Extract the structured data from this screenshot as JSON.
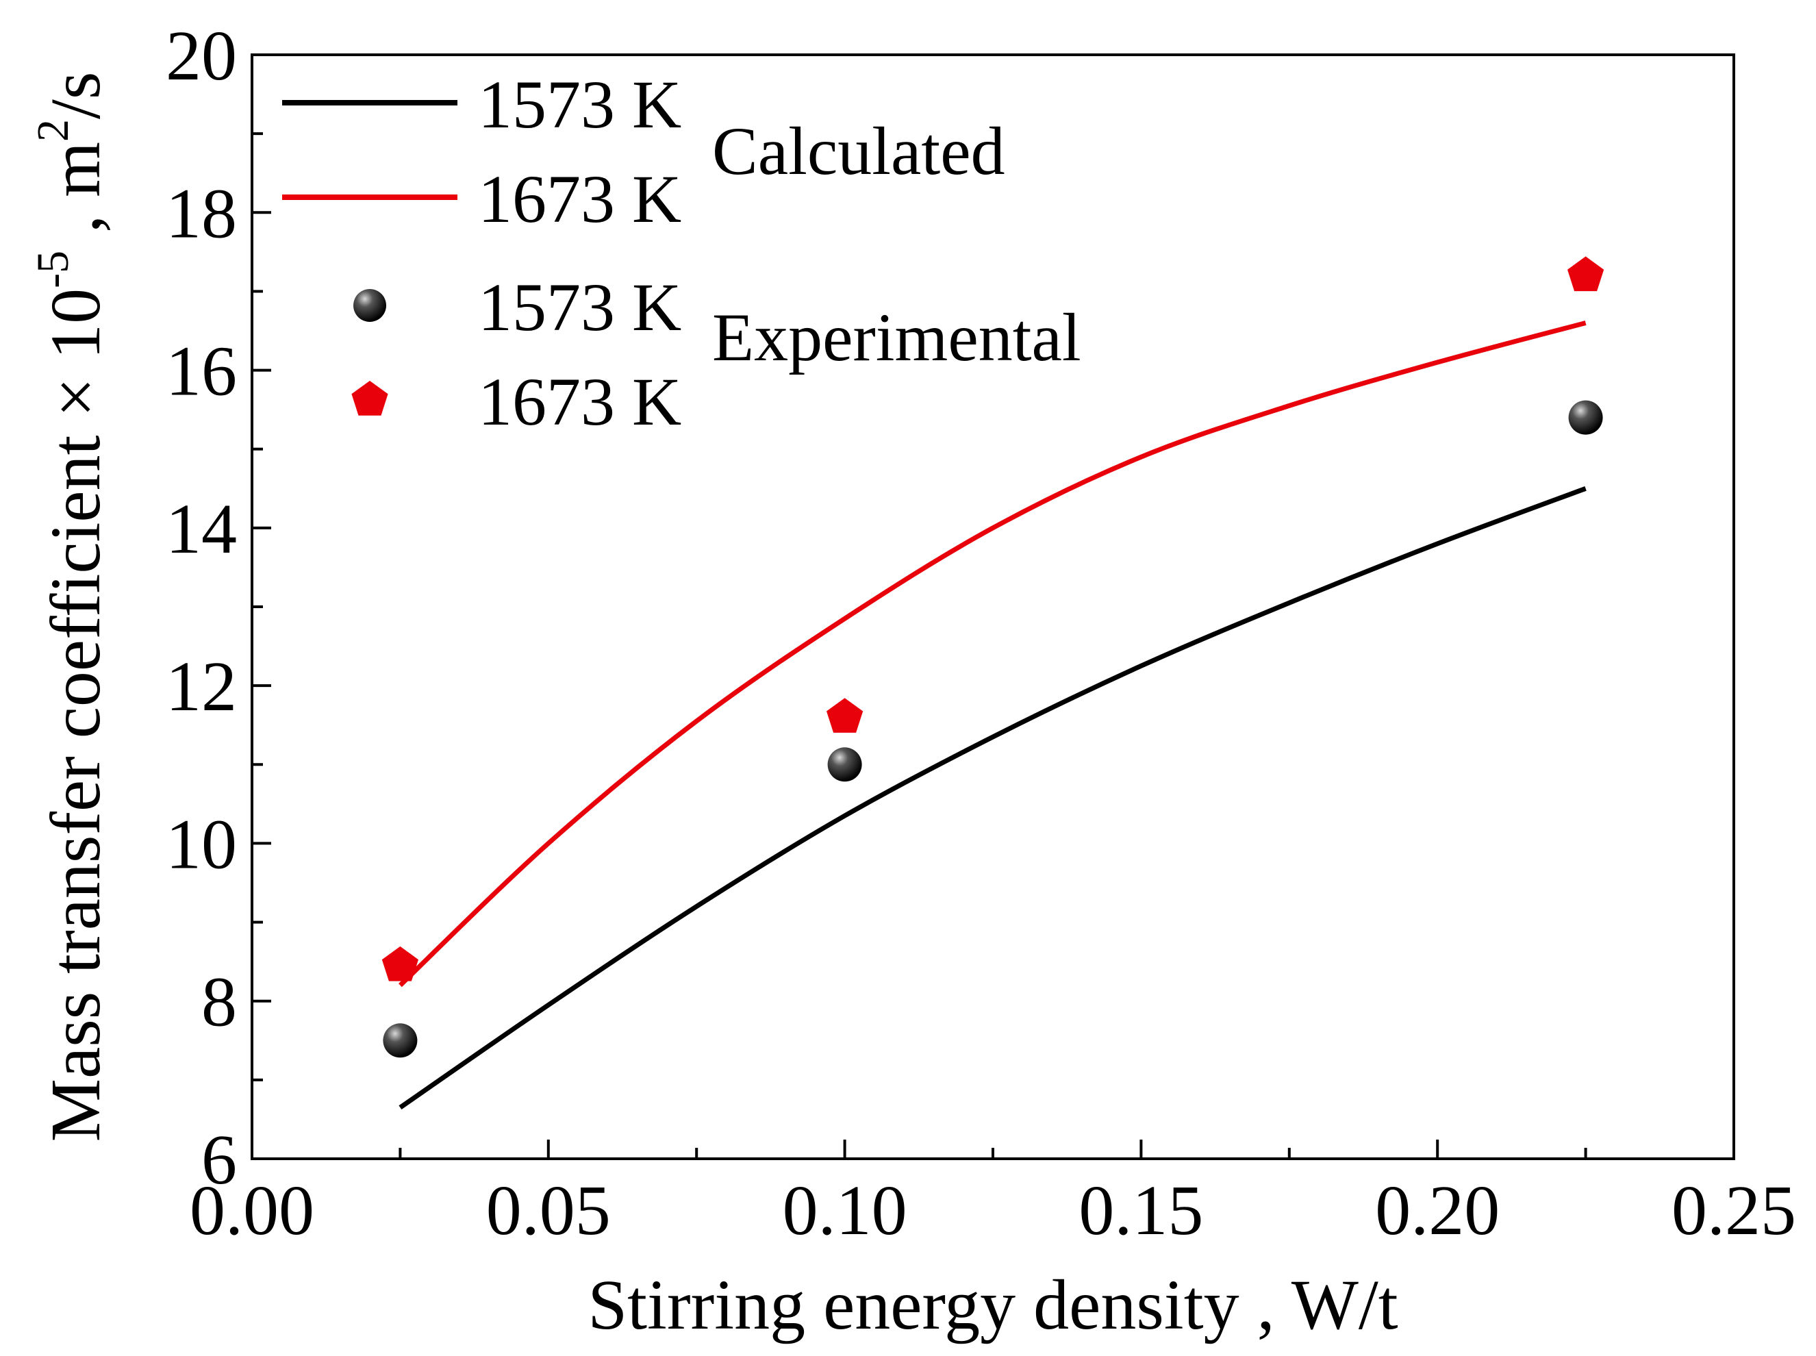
{
  "chart_data": {
    "type": "line",
    "xlabel": "Stirring energy density , W/t",
    "ylabel": {
      "main": "Mass transfer coefficient × 10",
      "exp": "-5",
      "unit_prefix": " , m",
      "unit_exp": "2",
      "unit_suffix": "/s"
    },
    "xlim": [
      0.0,
      0.25
    ],
    "ylim": [
      6,
      20
    ],
    "x_ticks": [
      0.0,
      0.05,
      0.1,
      0.15,
      0.2,
      0.25
    ],
    "x_tick_labels": [
      "0.00",
      "0.05",
      "0.10",
      "0.15",
      "0.20",
      "0.25"
    ],
    "y_ticks": [
      6,
      8,
      10,
      12,
      14,
      16,
      18,
      20
    ],
    "y_tick_labels": [
      "6",
      "8",
      "10",
      "12",
      "14",
      "16",
      "18",
      "20"
    ],
    "series": [
      {
        "name": "1573 K",
        "group": "Calculated",
        "kind": "line",
        "color": "#000000",
        "x": [
          0.025,
          0.05,
          0.075,
          0.1,
          0.125,
          0.15,
          0.175,
          0.2,
          0.225
        ],
        "y": [
          6.65,
          7.95,
          9.2,
          10.35,
          11.35,
          12.25,
          13.05,
          13.8,
          14.5
        ]
      },
      {
        "name": "1673 K",
        "group": "Calculated",
        "kind": "line",
        "color": "#e8000b",
        "x": [
          0.025,
          0.05,
          0.075,
          0.1,
          0.125,
          0.15,
          0.175,
          0.2,
          0.225
        ],
        "y": [
          8.2,
          10.0,
          11.55,
          12.85,
          14.0,
          14.9,
          15.55,
          16.1,
          16.6
        ]
      },
      {
        "name": "1573 K",
        "group": "Experimental",
        "kind": "scatter",
        "marker": "sphere",
        "color": "#000000",
        "x": [
          0.025,
          0.1,
          0.225
        ],
        "y": [
          7.5,
          11.0,
          15.4
        ]
      },
      {
        "name": "1673 K",
        "group": "Experimental",
        "kind": "scatter",
        "marker": "pentagon",
        "color": "#e8000b",
        "x": [
          0.025,
          0.1,
          0.225
        ],
        "y": [
          8.45,
          11.6,
          17.2
        ]
      }
    ],
    "legend": {
      "position": "top-left",
      "groups": [
        "Calculated",
        "Experimental"
      ]
    }
  }
}
